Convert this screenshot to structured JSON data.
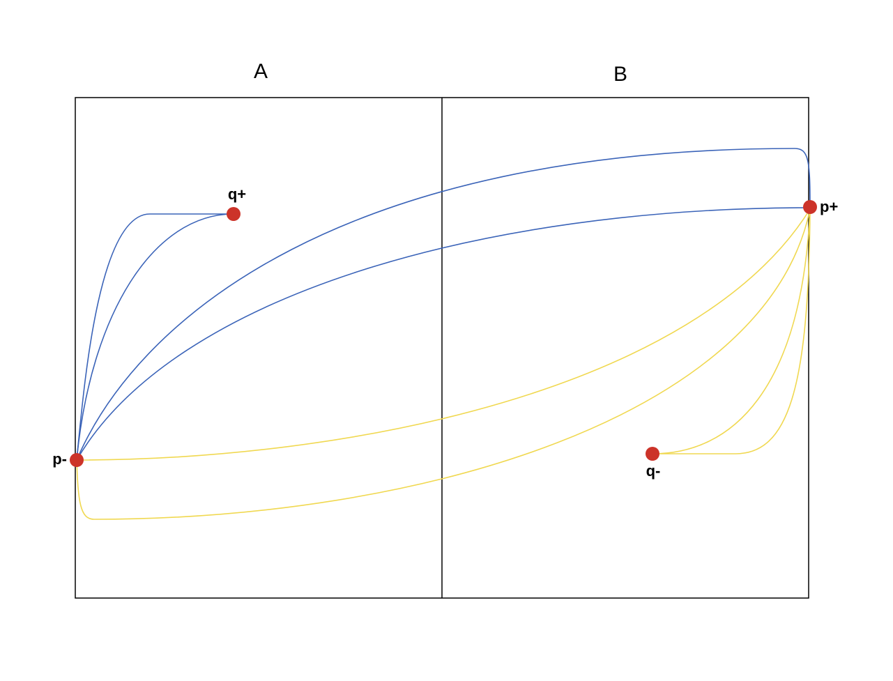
{
  "regions": [
    {
      "label": "A"
    },
    {
      "label": "B"
    }
  ],
  "nodes": [
    {
      "label": "q+"
    },
    {
      "label": "p+"
    },
    {
      "label": "p-"
    },
    {
      "label": "q-"
    }
  ]
}
